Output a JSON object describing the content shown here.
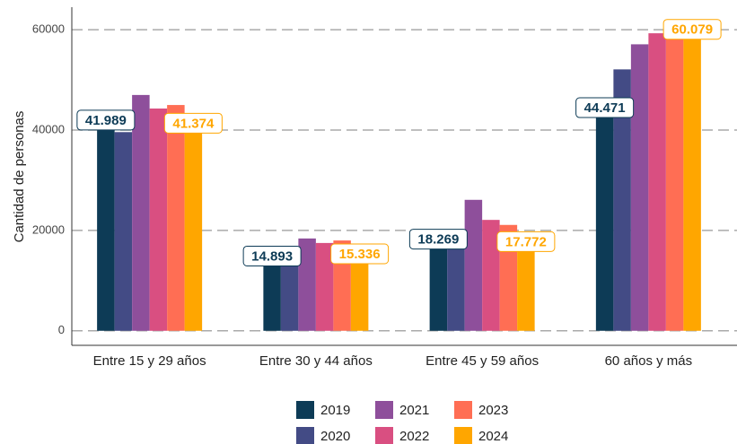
{
  "chart_data": {
    "type": "bar",
    "y_label": "Cantidad de personas",
    "categories": [
      "Entre 15 y 29 años",
      "Entre 30 y 44 años",
      "Entre 45 y 59 años",
      "60 años  y más"
    ],
    "series": [
      {
        "name": "2019",
        "color": "#0d3b56",
        "values": [
          41989,
          14893,
          18269,
          44471
        ],
        "value_labels": [
          "41.989",
          "14.893",
          "18.269",
          "44.471"
        ]
      },
      {
        "name": "2020",
        "color": "#434b85",
        "values": [
          39600,
          14800,
          18000,
          52100
        ]
      },
      {
        "name": "2021",
        "color": "#8e4f9b",
        "values": [
          47000,
          18400,
          26100,
          57100
        ]
      },
      {
        "name": "2022",
        "color": "#d94f81",
        "values": [
          44300,
          17500,
          22100,
          59300
        ]
      },
      {
        "name": "2023",
        "color": "#ff6e54",
        "values": [
          45000,
          18000,
          21100,
          59300
        ]
      },
      {
        "name": "2024",
        "color": "#ffa600",
        "values": [
          41374,
          15336,
          17772,
          60079
        ],
        "value_labels": [
          "41.374",
          "15.336",
          "17.772",
          "60.079"
        ]
      }
    ],
    "ylim": [
      -2900,
      64500
    ],
    "yticks": [
      0,
      20000,
      40000,
      60000
    ],
    "grid": true,
    "legend": "bottom"
  }
}
